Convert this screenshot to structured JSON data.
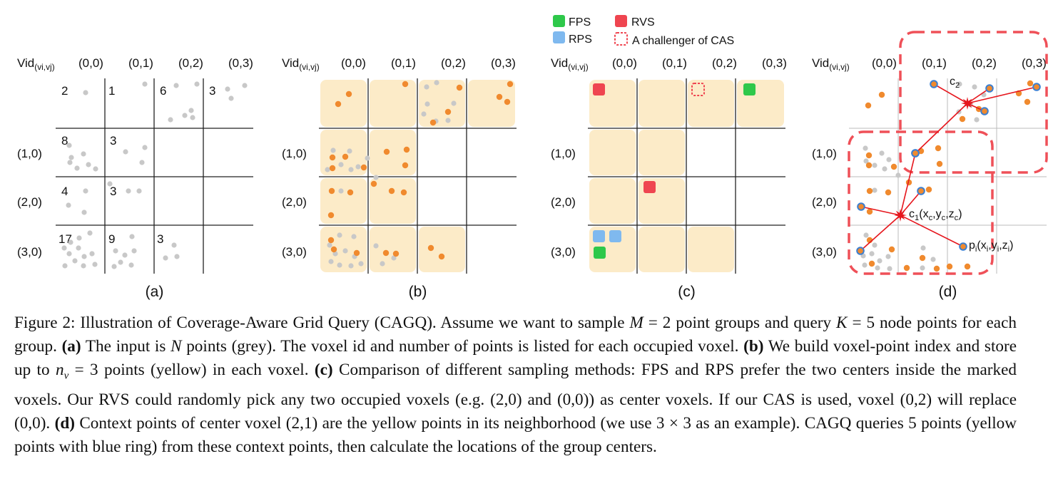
{
  "figure": {
    "vid_label": "Vid",
    "vid_sub": "(vi,vj)",
    "col_labels": [
      "(0,0)",
      "(0,1)",
      "(0,2)",
      "(0,3)"
    ],
    "row_labels": [
      "(1,0)",
      "(2,0)",
      "(3,0)"
    ],
    "counts_a": {
      "r0c0": "2",
      "r0c1": "1",
      "r0c2": "6",
      "r0c3": "3",
      "r1c0": "8",
      "r1c1": "3",
      "r2c0": "4",
      "r2c1": "3",
      "r3c0": "17",
      "r3c1": "9",
      "r3c2": "3"
    },
    "panel_labels": [
      "(a)",
      "(b)",
      "(c)",
      "(d)"
    ],
    "legend": {
      "fps": "FPS",
      "rps": "RPS",
      "rvs": "RVS",
      "cas": "A challenger of CAS"
    },
    "annot": {
      "c2": "c",
      "c2_sub": "2",
      "c1": "c",
      "c1_sub": "1",
      "c1_coord": "(x",
      "c1_xs": "c",
      "c1_y": ",y",
      "c1_ys": "c",
      "c1_z": ",z",
      "c1_zs": "c",
      "c1_end": ")",
      "pi": "p",
      "pi_sub": "i",
      "pi_coord": "(x",
      "pi_xs": "i",
      "pi_y": ",y",
      "pi_ys": "i",
      "pi_z": ",z",
      "pi_zs": "i",
      "pi_end": ")"
    },
    "colors": {
      "grey_point": "#c8c8c8",
      "yellow_point": "#f08a2e",
      "voxel_fill": "#fcebc8",
      "fps": "#2ec84a",
      "rps": "#7fb9ef",
      "rvs": "#ef4550",
      "cas": "#ef4550",
      "dash": "#ef5058",
      "line": "#e6161d"
    }
  },
  "caption": {
    "t1": "Figure 2: Illustration of Coverage-Aware Grid Query (CAGQ). Assume we want to sample ",
    "m_M": "M",
    "t2": " = 2 point groups and query ",
    "m_K": "K",
    "t3": " = 5 node points for each group. ",
    "b_a": "(a)",
    "t4": " The input is ",
    "m_N": "N",
    "t5": " points (grey). The voxel id and number of points is listed for each occupied voxel. ",
    "b_b": "(b)",
    "t6": " We build voxel-point index and store up to ",
    "m_nv": "n",
    "m_nv_sub": "v",
    "t7": " = 3 points (yellow) in each voxel. ",
    "b_c": "(c)",
    "t8": " Comparison of different sampling methods: FPS and RPS prefer the two centers inside the marked voxels. Our RVS could randomly pick any two occupied voxels (e.g. (2,0) and (0,0)) as center voxels. If our CAS is used, voxel (0,2) will replace (0,0). ",
    "b_d": "(d)",
    "t9": " Context points of center voxel (2,1) are the yellow points in its neighborhood (we use 3 × 3 as an example). CAGQ queries 5 points (yellow points with blue ring) from these context points, then calculate the locations of the group centers."
  }
}
